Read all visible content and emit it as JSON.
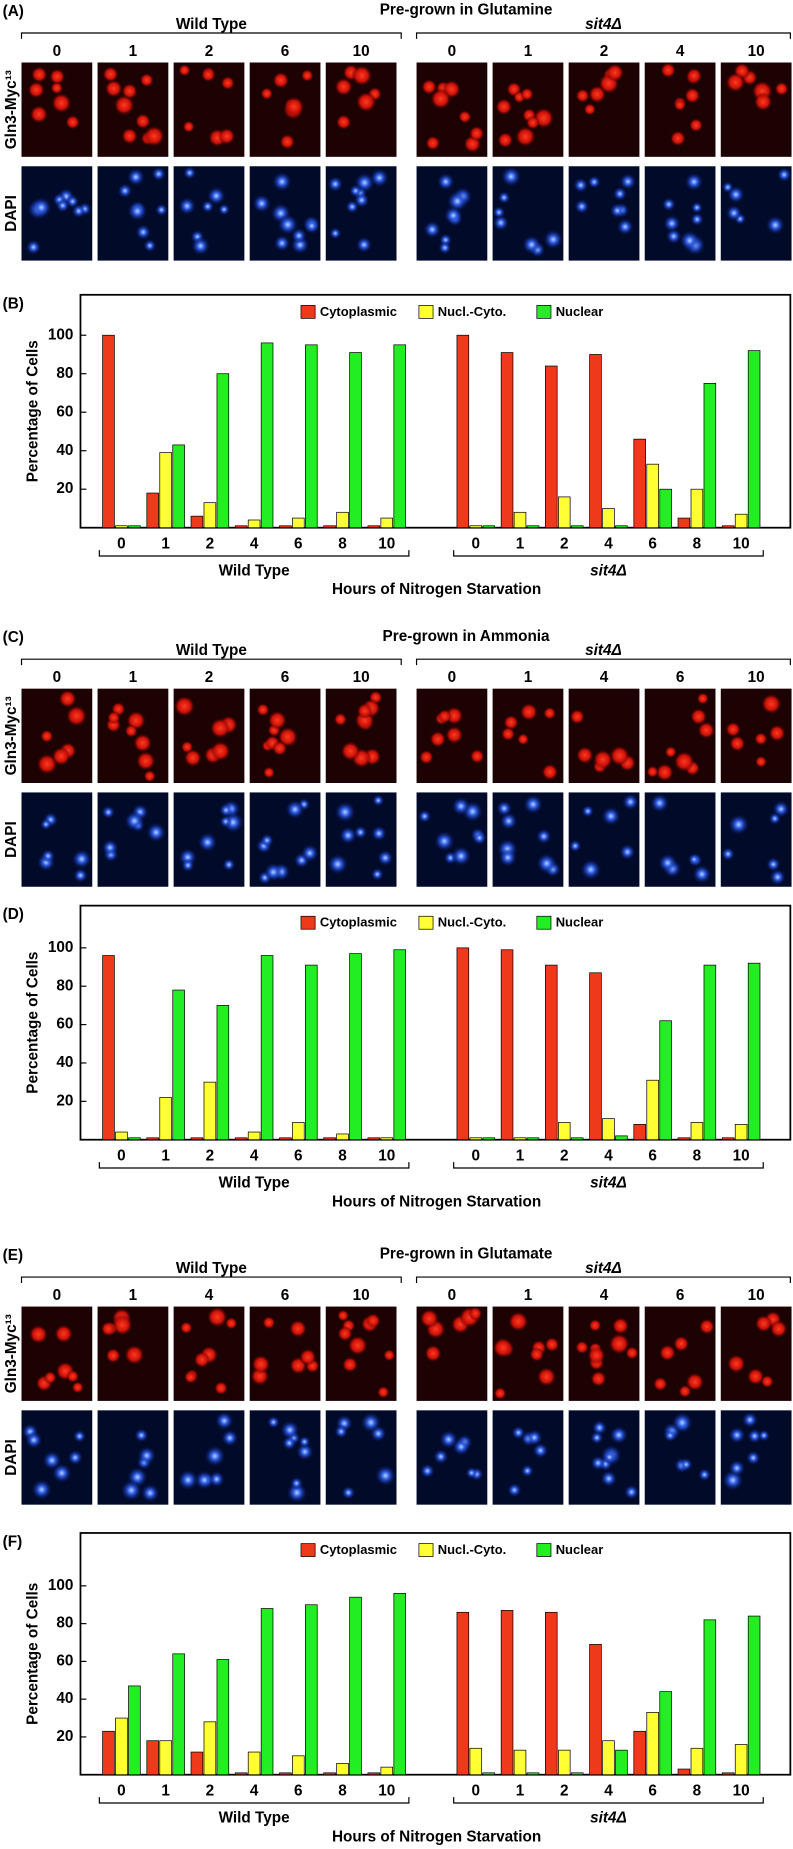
{
  "image_panels": [
    {
      "label": "(A)",
      "title": "Pre-grown in Glutamine",
      "groups": [
        {
          "name": "Wild Type",
          "times": [
            0,
            1,
            2,
            6,
            10
          ]
        },
        {
          "name": "sit4Δ",
          "times": [
            0,
            1,
            2,
            4,
            10
          ]
        }
      ],
      "rows": [
        "Gln3-Myc¹³",
        "DAPI"
      ]
    },
    {
      "label": "(C)",
      "title": "Pre-grown in Ammonia",
      "groups": [
        {
          "name": "Wild Type",
          "times": [
            0,
            1,
            2,
            6,
            10
          ]
        },
        {
          "name": "sit4Δ",
          "times": [
            0,
            1,
            4,
            6,
            10
          ]
        }
      ],
      "rows": [
        "Gln3-Myc¹³",
        "DAPI"
      ]
    },
    {
      "label": "(E)",
      "title": "Pre-grown in Glutamate",
      "groups": [
        {
          "name": "Wild Type",
          "times": [
            0,
            1,
            4,
            6,
            10
          ]
        },
        {
          "name": "sit4Δ",
          "times": [
            0,
            1,
            4,
            6,
            10
          ]
        }
      ],
      "rows": [
        "Gln3-Myc¹³",
        "DAPI"
      ]
    }
  ],
  "chart_data": [
    {
      "type": "bar",
      "label": "(B)",
      "groups": [
        "Wild Type",
        "sit4Δ"
      ],
      "categories": [
        0,
        1,
        2,
        4,
        6,
        8,
        10,
        0,
        1,
        2,
        4,
        6,
        8,
        10
      ],
      "series": [
        {
          "name": "Cytoplasmic",
          "color": "#ee3a1b",
          "values": [
            100,
            18,
            6,
            1,
            1,
            1,
            1,
            100,
            91,
            84,
            90,
            46,
            5,
            1
          ]
        },
        {
          "name": "Nucl.-Cyto.",
          "color": "#ffff33",
          "values": [
            1,
            39,
            13,
            4,
            5,
            8,
            5,
            1,
            8,
            16,
            10,
            33,
            20,
            7
          ]
        },
        {
          "name": "Nuclear",
          "color": "#22ee22",
          "values": [
            1,
            43,
            80,
            96,
            95,
            91,
            95,
            1,
            1,
            1,
            1,
            20,
            75,
            92
          ]
        }
      ],
      "x_label": "Hours of Nitrogen Starvation",
      "y_label": "Percentage of Cells",
      "ylim": [
        0,
        121
      ],
      "yticks": [
        20,
        40,
        60,
        80,
        100
      ]
    },
    {
      "type": "bar",
      "label": "(D)",
      "groups": [
        "Wild Type",
        "sit4Δ"
      ],
      "categories": [
        0,
        1,
        2,
        4,
        6,
        8,
        10,
        0,
        1,
        2,
        4,
        6,
        8,
        10
      ],
      "series": [
        {
          "name": "Cytoplasmic",
          "color": "#ee3a1b",
          "values": [
            96,
            1,
            1,
            1,
            1,
            1,
            1,
            100,
            99,
            91,
            87,
            8,
            1,
            1
          ]
        },
        {
          "name": "Nucl.-Cyto.",
          "color": "#ffff33",
          "values": [
            4,
            22,
            30,
            4,
            9,
            3,
            1,
            1,
            1,
            9,
            11,
            31,
            9,
            8
          ]
        },
        {
          "name": "Nuclear",
          "color": "#22ee22",
          "values": [
            1,
            78,
            70,
            96,
            91,
            97,
            99,
            1,
            1,
            1,
            2,
            62,
            91,
            92
          ]
        }
      ],
      "x_label": "Hours of Nitrogen Starvation",
      "y_label": "Percentage of Cells",
      "ylim": [
        0,
        122
      ],
      "yticks": [
        20,
        40,
        60,
        80,
        100
      ]
    },
    {
      "type": "bar",
      "label": "(F)",
      "groups": [
        "Wild Type",
        "sit4Δ"
      ],
      "categories": [
        0,
        1,
        2,
        4,
        6,
        8,
        10,
        0,
        1,
        2,
        4,
        6,
        8,
        10
      ],
      "series": [
        {
          "name": "Cytoplasmic",
          "color": "#ee3a1b",
          "values": [
            23,
            18,
            12,
            1,
            1,
            1,
            1,
            86,
            87,
            86,
            69,
            23,
            3,
            1
          ]
        },
        {
          "name": "Nucl.-Cyto.",
          "color": "#ffff33",
          "values": [
            30,
            18,
            28,
            12,
            10,
            6,
            4,
            14,
            13,
            13,
            18,
            33,
            14,
            16
          ]
        },
        {
          "name": "Nuclear",
          "color": "#22ee22",
          "values": [
            47,
            64,
            61,
            88,
            90,
            94,
            96,
            1,
            1,
            1,
            13,
            44,
            82,
            84
          ]
        }
      ],
      "x_label": "Hours of Nitrogen Starvation",
      "y_label": "Percentage of Cells",
      "ylim": [
        0,
        128
      ],
      "yticks": [
        20,
        40,
        60,
        80,
        100
      ]
    }
  ]
}
